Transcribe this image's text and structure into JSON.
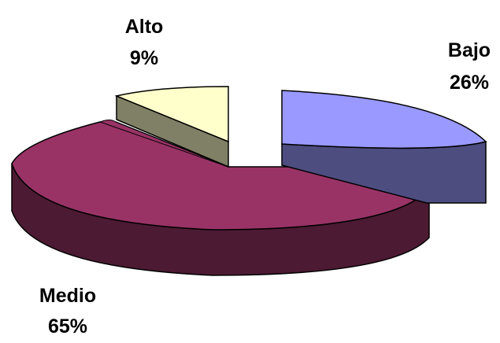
{
  "chart_data": {
    "type": "pie",
    "title": "",
    "legend": "none",
    "slices": [
      {
        "label": "Bajo",
        "percent_label": "26%",
        "value": 26,
        "color": "#9999ff",
        "side_color": "#4d4d80"
      },
      {
        "label": "Medio",
        "percent_label": "65%",
        "value": 65,
        "color": "#993366",
        "side_color": "#4c1a33"
      },
      {
        "label": "Alto",
        "percent_label": "9%",
        "value": 9,
        "color": "#ffffcc",
        "side_color": "#808066"
      }
    ]
  }
}
